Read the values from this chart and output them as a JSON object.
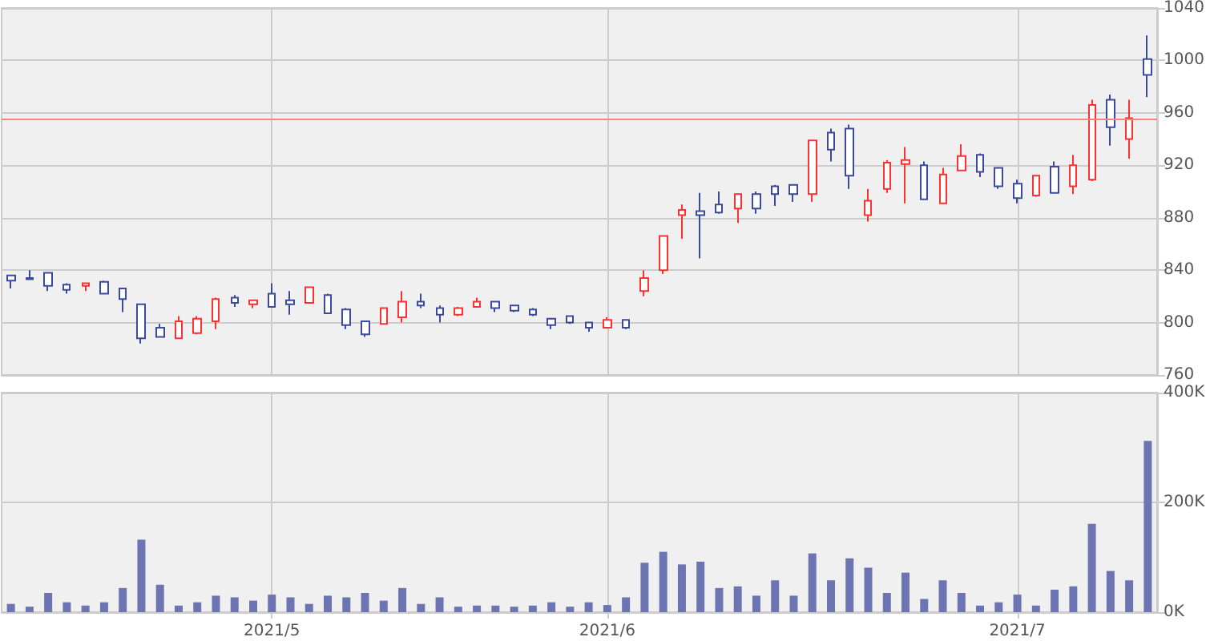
{
  "chart_data": [
    {
      "type": "candlestick",
      "categories": [
        null,
        null,
        null,
        null,
        null,
        null,
        null,
        null,
        null,
        null,
        null,
        null,
        null,
        null,
        "2021/5",
        null,
        null,
        null,
        null,
        null,
        null,
        null,
        null,
        null,
        null,
        null,
        null,
        null,
        null,
        null,
        null,
        null,
        "2021/6",
        null,
        null,
        null,
        null,
        null,
        null,
        null,
        null,
        null,
        null,
        null,
        null,
        null,
        null,
        null,
        null,
        null,
        null,
        null,
        null,
        null,
        "2021/7",
        null,
        null,
        null,
        null,
        null,
        null,
        null
      ],
      "ohlc": [
        [
          836,
          836,
          826,
          832
        ],
        [
          834,
          840,
          833,
          833
        ],
        [
          838,
          838,
          824,
          828
        ],
        [
          829,
          830,
          822,
          825
        ],
        [
          828,
          830,
          824,
          830
        ],
        [
          831,
          832,
          822,
          822
        ],
        [
          826,
          826,
          808,
          818
        ],
        [
          814,
          814,
          784,
          788
        ],
        [
          796,
          799,
          789,
          789
        ],
        [
          788,
          805,
          788,
          801
        ],
        [
          792,
          805,
          791,
          803
        ],
        [
          801,
          819,
          795,
          818
        ],
        [
          819,
          821,
          812,
          815
        ],
        [
          814,
          817,
          811,
          817
        ],
        [
          822,
          830,
          812,
          812
        ],
        [
          817,
          824,
          806,
          814
        ],
        [
          815,
          827,
          815,
          827
        ],
        [
          821,
          822,
          807,
          807
        ],
        [
          810,
          811,
          795,
          798
        ],
        [
          801,
          801,
          789,
          791
        ],
        [
          799,
          811,
          799,
          811
        ],
        [
          804,
          824,
          800,
          816
        ],
        [
          816,
          822,
          811,
          813
        ],
        [
          811,
          813,
          800,
          806
        ],
        [
          806,
          812,
          805,
          811
        ],
        [
          812,
          819,
          812,
          816
        ],
        [
          816,
          816,
          808,
          811
        ],
        [
          813,
          813,
          808,
          809
        ],
        [
          810,
          811,
          805,
          806
        ],
        [
          803,
          803,
          795,
          798
        ],
        [
          805,
          805,
          799,
          800
        ],
        [
          800,
          800,
          793,
          796
        ],
        [
          796,
          804,
          796,
          802
        ],
        [
          802,
          802,
          795,
          796
        ],
        [
          824,
          840,
          820,
          834
        ],
        [
          840,
          866,
          837,
          866
        ],
        [
          882,
          890,
          864,
          886
        ],
        [
          885,
          899,
          849,
          882
        ],
        [
          890,
          900,
          883,
          884
        ],
        [
          887,
          898,
          876,
          898
        ],
        [
          898,
          900,
          883,
          887
        ],
        [
          904,
          905,
          889,
          898
        ],
        [
          905,
          905,
          892,
          898
        ],
        [
          898,
          939,
          892,
          939
        ],
        [
          945,
          948,
          923,
          932
        ],
        [
          948,
          951,
          902,
          912
        ],
        [
          882,
          902,
          877,
          893
        ],
        [
          902,
          924,
          899,
          922
        ],
        [
          921,
          934,
          891,
          924
        ],
        [
          920,
          923,
          894,
          894
        ],
        [
          891,
          918,
          891,
          913
        ],
        [
          916,
          936,
          916,
          927
        ],
        [
          928,
          929,
          911,
          915
        ],
        [
          918,
          918,
          902,
          904
        ],
        [
          906,
          909,
          891,
          895
        ],
        [
          897,
          912,
          896,
          912
        ],
        [
          919,
          923,
          899,
          899
        ],
        [
          904,
          928,
          898,
          920
        ],
        [
          909,
          970,
          908,
          966
        ],
        [
          970,
          974,
          935,
          949
        ],
        [
          940,
          970,
          925,
          956
        ],
        [
          1001,
          1019,
          972,
          989
        ]
      ],
      "colors": [
        "#3c4a9e",
        "#3c4a9e",
        "#3c4a9e",
        "#3c4a9e",
        "#ff3030",
        "#3c4a9e",
        "#3c4a9e",
        "#3c4a9e",
        "#3c4a9e",
        "#ff3030",
        "#ff3030",
        "#ff3030",
        "#3c4a9e",
        "#ff3030",
        "#3c4a9e",
        "#3c4a9e",
        "#ff3030",
        "#3c4a9e",
        "#3c4a9e",
        "#3c4a9e",
        "#ff3030",
        "#ff3030",
        "#3c4a9e",
        "#3c4a9e",
        "#ff3030",
        "#ff3030",
        "#3c4a9e",
        "#3c4a9e",
        "#3c4a9e",
        "#3c4a9e",
        "#3c4a9e",
        "#3c4a9e",
        "#ff3030",
        "#3c4a9e",
        "#ff3030",
        "#ff3030",
        "#ff3030",
        "#3c4a9e",
        "#3c4a9e",
        "#ff3030",
        "#3c4a9e",
        "#3c4a9e",
        "#3c4a9e",
        "#ff3030",
        "#3c4a9e",
        "#3c4a9e",
        "#ff3030",
        "#ff3030",
        "#ff3030",
        "#3c4a9e",
        "#ff3030",
        "#ff3030",
        "#3c4a9e",
        "#3c4a9e",
        "#3c4a9e",
        "#ff3030",
        "#3c4a9e",
        "#ff3030",
        "#ff3030",
        "#3c4a9e",
        "#ff3030",
        "#3c4a9e"
      ],
      "ylim": [
        760,
        1040
      ],
      "yticks": [
        760,
        800,
        840,
        880,
        920,
        960,
        1000,
        1040
      ],
      "grid": true,
      "tick_labels": "y",
      "ref_lines": [
        {
          "axis": "y",
          "value": 955,
          "color": "#ff8080"
        }
      ]
    },
    {
      "type": "bar",
      "categories": [
        null,
        null,
        null,
        null,
        null,
        null,
        null,
        null,
        null,
        null,
        null,
        null,
        null,
        null,
        "2021/5",
        null,
        null,
        null,
        null,
        null,
        null,
        null,
        null,
        null,
        null,
        null,
        null,
        null,
        null,
        null,
        null,
        null,
        "2021/6",
        null,
        null,
        null,
        null,
        null,
        null,
        null,
        null,
        null,
        null,
        null,
        null,
        null,
        null,
        null,
        null,
        null,
        null,
        null,
        null,
        null,
        "2021/7",
        null,
        null,
        null,
        null,
        null,
        null,
        null
      ],
      "values": [
        15000,
        10000,
        35000,
        18000,
        12000,
        18000,
        44000,
        132000,
        50000,
        12000,
        18000,
        30000,
        27000,
        21000,
        32000,
        27000,
        15000,
        30000,
        27000,
        35000,
        21000,
        44000,
        15000,
        27000,
        10000,
        12000,
        12000,
        10000,
        12000,
        18000,
        10000,
        18000,
        13000,
        27000,
        90000,
        110000,
        87000,
        92000,
        44000,
        47000,
        30000,
        58000,
        30000,
        107000,
        58000,
        98000,
        81000,
        35000,
        72000,
        24000,
        58000,
        35000,
        12000,
        18000,
        32000,
        12000,
        41000,
        47000,
        161000,
        75000,
        58000,
        312000
      ],
      "color": "#6c75b1",
      "ylim": [
        0,
        400000
      ],
      "yticks": [
        {
          "value": 0,
          "label": "0K"
        },
        {
          "value": 200000,
          "label": "200K"
        },
        {
          "value": 400000,
          "label": "400K"
        }
      ],
      "grid": true
    }
  ]
}
